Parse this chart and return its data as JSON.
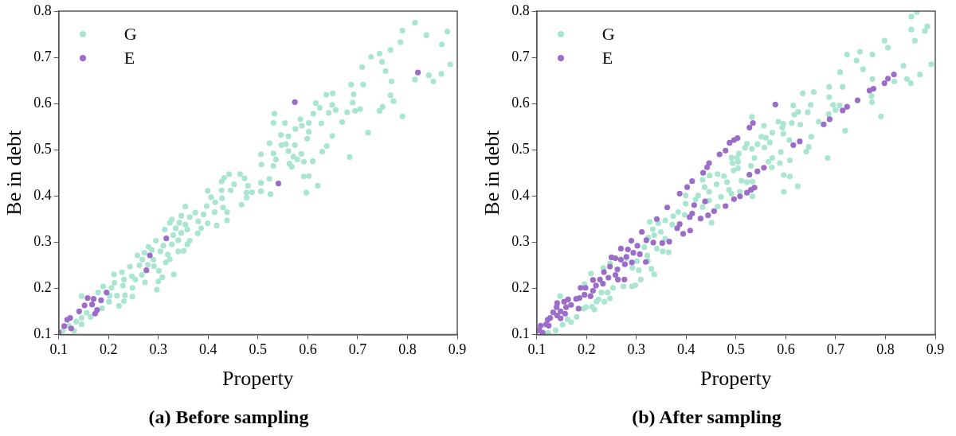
{
  "chart_data": [
    {
      "type": "scatter",
      "title": "(a) Before sampling",
      "xlabel": "Property",
      "ylabel": "Be in debt",
      "xlim": [
        0.1,
        0.9
      ],
      "xticks": [
        0.1,
        0.2,
        0.3,
        0.4,
        0.5,
        0.6,
        0.7,
        0.8,
        0.9
      ],
      "ylim": [
        0.1,
        0.8
      ],
      "yticks": [
        0.1,
        0.2,
        0.3,
        0.4,
        0.5,
        0.6,
        0.7,
        0.8
      ],
      "grid": false,
      "legend": "top left",
      "marker": "circle",
      "series": [
        {
          "name": "G",
          "color": "#a9e5d1",
          "x": [
            0.815,
            0.79,
            0.838,
            0.88,
            0.786,
            0.869,
            0.766,
            0.744,
            0.727,
            0.749,
            0.709,
            0.886,
            0.756,
            0.843,
            0.868,
            0.815,
            0.852,
            0.768,
            0.687,
            0.711,
            0.637,
            0.65,
            0.692,
            0.766,
            0.772,
            0.616,
            0.69,
            0.624,
            0.649,
            0.656,
            0.705,
            0.695,
            0.679,
            0.642,
            0.75,
            0.744,
            0.611,
            0.79,
            0.669,
            0.533,
            0.531,
            0.554,
            0.585,
            0.588,
            0.602,
            0.627,
            0.575,
            0.602,
            0.721,
            0.546,
            0.561,
            0.649,
            0.599,
            0.523,
            0.547,
            0.556,
            0.574,
            0.638,
            0.506,
            0.531,
            0.561,
            0.587,
            0.629,
            0.684,
            0.536,
            0.571,
            0.579,
            0.592,
            0.61,
            0.507,
            0.531,
            0.563,
            0.568,
            0.592,
            0.602,
            0.62,
            0.597,
            0.506,
            0.523,
            0.506,
            0.525,
            0.488,
            0.442,
            0.432,
            0.464,
            0.473,
            0.427,
            0.452,
            0.48,
            0.445,
            0.399,
            0.477,
            0.427,
            0.406,
            0.428,
            0.477,
            0.467,
            0.397,
            0.414,
            0.354,
            0.374,
            0.391,
            0.413,
            0.43,
            0.438,
            0.346,
            0.363,
            0.38,
            0.327,
            0.323,
            0.342,
            0.354,
            0.399,
            0.417,
            0.438,
            0.313,
            0.335,
            0.358,
            0.386,
            0.33,
            0.346,
            0.379,
            0.295,
            0.31,
            0.327,
            0.34,
            0.363,
            0.358,
            0.28,
            0.272,
            0.287,
            0.304,
            0.319,
            0.34,
            0.351,
            0.258,
            0.268,
            0.29,
            0.315,
            0.323,
            0.243,
            0.262,
            0.279,
            0.291,
            0.227,
            0.247,
            0.267,
            0.301,
            0.331,
            0.211,
            0.308,
            0.231,
            0.254,
            0.273,
            0.3,
            0.212,
            0.189,
            0.206,
            0.229,
            0.248,
            0.297,
            0.179,
            0.202,
            0.217,
            0.233,
            0.248,
            0.146,
            0.201,
            0.231,
            0.187,
            0.221,
            0.156,
            0.164,
            0.146,
            0.135,
            0.131,
            0.146,
            0.108,
            0.12
          ],
          "values": [
            0.775,
            0.758,
            0.748,
            0.756,
            0.733,
            0.728,
            0.716,
            0.708,
            0.701,
            0.69,
            0.679,
            0.685,
            0.67,
            0.661,
            0.664,
            0.652,
            0.648,
            0.648,
            0.641,
            0.641,
            0.619,
            0.622,
            0.62,
            0.618,
            0.605,
            0.601,
            0.602,
            0.591,
            0.597,
            0.586,
            0.588,
            0.584,
            0.581,
            0.58,
            0.593,
            0.584,
            0.578,
            0.572,
            0.56,
            0.578,
            0.558,
            0.558,
            0.566,
            0.552,
            0.558,
            0.557,
            0.545,
            0.539,
            0.537,
            0.532,
            0.529,
            0.53,
            0.524,
            0.514,
            0.51,
            0.512,
            0.51,
            0.508,
            0.49,
            0.492,
            0.497,
            0.491,
            0.496,
            0.484,
            0.479,
            0.485,
            0.479,
            0.474,
            0.475,
            0.468,
            0.465,
            0.47,
            0.463,
            0.442,
            0.443,
            0.422,
            0.407,
            0.428,
            0.437,
            0.41,
            0.404,
            0.408,
            0.447,
            0.439,
            0.447,
            0.438,
            0.431,
            0.425,
            0.422,
            0.412,
            0.411,
            0.407,
            0.412,
            0.397,
            0.395,
            0.396,
            0.381,
            0.378,
            0.386,
            0.377,
            0.364,
            0.36,
            0.365,
            0.375,
            0.365,
            0.357,
            0.354,
            0.345,
            0.349,
            0.342,
            0.342,
            0.338,
            0.341,
            0.336,
            0.347,
            0.327,
            0.33,
            0.327,
            0.33,
            0.315,
            0.32,
            0.319,
            0.303,
            0.292,
            0.295,
            0.304,
            0.303,
            0.295,
            0.29,
            0.277,
            0.283,
            0.28,
            0.273,
            0.28,
            0.281,
            0.271,
            0.262,
            0.262,
            0.256,
            0.263,
            0.247,
            0.25,
            0.251,
            0.248,
            0.235,
            0.226,
            0.229,
            0.238,
            0.23,
            0.23,
            0.224,
            0.219,
            0.219,
            0.213,
            0.215,
            0.212,
            0.204,
            0.201,
            0.206,
            0.201,
            0.197,
            0.191,
            0.184,
            0.184,
            0.185,
            0.182,
            0.183,
            0.171,
            0.172,
            0.157,
            0.162,
            0.147,
            0.138,
            0.136,
            0.128,
            0.108,
            0.122,
            0.108,
            0.119
          ]
        },
        {
          "name": "E",
          "color": "#9b6cc8",
          "x": [
            0.574,
            0.821,
            0.541,
            0.316,
            0.283,
            0.276,
            0.196,
            0.185,
            0.17,
            0.158,
            0.152,
            0.167,
            0.177,
            0.173,
            0.141,
            0.123,
            0.117,
            0.111,
            0.125,
            0.1
          ],
          "values": [
            0.603,
            0.667,
            0.427,
            0.308,
            0.271,
            0.239,
            0.191,
            0.174,
            0.177,
            0.179,
            0.163,
            0.165,
            0.153,
            0.145,
            0.15,
            0.136,
            0.132,
            0.118,
            0.113,
            0.105
          ]
        }
      ]
    },
    {
      "type": "scatter",
      "title": "(b) After sampling",
      "xlabel": "Property",
      "ylabel": "Be in debt",
      "xlim": [
        0.1,
        0.9
      ],
      "xticks": [
        0.1,
        0.2,
        0.3,
        0.4,
        0.5,
        0.6,
        0.7,
        0.8,
        0.9
      ],
      "ylim": [
        0.1,
        0.8
      ],
      "yticks": [
        0.1,
        0.2,
        0.3,
        0.4,
        0.5,
        0.6,
        0.7,
        0.8
      ],
      "grid": false,
      "legend": "top left",
      "marker": "circle",
      "series": [
        {
          "name": "G",
          "color": "#a9e5d1",
          "x": [
            0.863,
            0.852,
            0.852,
            0.884,
            0.879,
            0.859,
            0.798,
            0.805,
            0.723,
            0.749,
            0.742,
            0.774,
            0.755,
            0.709,
            0.892,
            0.836,
            0.869,
            0.843,
            0.851,
            0.818,
            0.774,
            0.687,
            0.714,
            0.634,
            0.656,
            0.687,
            0.772,
            0.773,
            0.615,
            0.65,
            0.695,
            0.708,
            0.7,
            0.625,
            0.644,
            0.686,
            0.617,
            0.666,
            0.791,
            0.532,
            0.585,
            0.595,
            0.612,
            0.556,
            0.593,
            0.629,
            0.573,
            0.595,
            0.719,
            0.651,
            0.551,
            0.56,
            0.568,
            0.607,
            0.522,
            0.543,
            0.557,
            0.646,
            0.532,
            0.518,
            0.641,
            0.506,
            0.59,
            0.573,
            0.684,
            0.491,
            0.502,
            0.537,
            0.565,
            0.588,
            0.608,
            0.504,
            0.493,
            0.53,
            0.572,
            0.504,
            0.495,
            0.596,
            0.608,
            0.624,
            0.596,
            0.463,
            0.476,
            0.447,
            0.511,
            0.522,
            0.533,
            0.433,
            0.461,
            0.482,
            0.446,
            0.437,
            0.508,
            0.486,
            0.491,
            0.533,
            0.47,
            0.424,
            0.399,
            0.399,
            0.419,
            0.446,
            0.433,
            0.463,
            0.384,
            0.397,
            0.374,
            0.451,
            0.327,
            0.344,
            0.358,
            0.372,
            0.333,
            0.349,
            0.336,
            0.324,
            0.358,
            0.316,
            0.341,
            0.353,
            0.365,
            0.322,
            0.28,
            0.301,
            0.323,
            0.247,
            0.33,
            0.336,
            0.305,
            0.234,
            0.292,
            0.309,
            0.298,
            0.291,
            0.274,
            0.253,
            0.242,
            0.23,
            0.209,
            0.196,
            0.224,
            0.247,
            0.236,
            0.22,
            0.211,
            0.199,
            0.216,
            0.194,
            0.18,
            0.162,
            0.147,
            0.169,
            0.152,
            0.123,
            0.138
          ],
          "values": [
            0.798,
            0.788,
            0.76,
            0.767,
            0.757,
            0.736,
            0.736,
            0.721,
            0.706,
            0.712,
            0.693,
            0.706,
            0.674,
            0.668,
            0.685,
            0.682,
            0.663,
            0.653,
            0.644,
            0.648,
            0.653,
            0.636,
            0.636,
            0.622,
            0.625,
            0.614,
            0.616,
            0.603,
            0.596,
            0.597,
            0.597,
            0.596,
            0.586,
            0.582,
            0.581,
            0.577,
            0.576,
            0.561,
            0.572,
            0.571,
            0.561,
            0.556,
            0.558,
            0.552,
            0.548,
            0.554,
            0.537,
            0.535,
            0.541,
            0.528,
            0.528,
            0.526,
            0.516,
            0.521,
            0.513,
            0.512,
            0.505,
            0.506,
            0.502,
            0.504,
            0.496,
            0.492,
            0.495,
            0.482,
            0.482,
            0.483,
            0.483,
            0.482,
            0.474,
            0.471,
            0.477,
            0.474,
            0.471,
            0.465,
            0.462,
            0.46,
            0.455,
            0.445,
            0.442,
            0.421,
            0.409,
            0.447,
            0.443,
            0.444,
            0.433,
            0.43,
            0.431,
            0.435,
            0.425,
            0.43,
            0.409,
            0.419,
            0.409,
            0.413,
            0.405,
            0.399,
            0.398,
            0.401,
            0.401,
            0.383,
            0.392,
            0.39,
            0.376,
            0.377,
            0.365,
            0.359,
            0.356,
            0.342,
            0.344,
            0.341,
            0.347,
            0.338,
            0.328,
            0.322,
            0.315,
            0.31,
            0.307,
            0.289,
            0.286,
            0.28,
            0.278,
            0.271,
            0.265,
            0.259,
            0.259,
            0.254,
            0.242,
            0.23,
            0.239,
            0.244,
            0.244,
            0.219,
            0.207,
            0.204,
            0.204,
            0.201,
            0.191,
            0.191,
            0.232,
            0.209,
            0.176,
            0.178,
            0.171,
            0.171,
            0.16,
            0.159,
            0.154,
            0.156,
            0.138,
            0.133,
            0.183,
            0.127,
            0.121,
            0.104,
            0.109
          ]
        },
        {
          "name": "E",
          "color": "#9b6cc8",
          "x": [
            0.579,
            0.817,
            0.805,
            0.798,
            0.776,
            0.768,
            0.744,
            0.723,
            0.714,
            0.688,
            0.676,
            0.628,
            0.615,
            0.556,
            0.543,
            0.527,
            0.537,
            0.53,
            0.522,
            0.508,
            0.496,
            0.479,
            0.534,
            0.527,
            0.503,
            0.496,
            0.487,
            0.479,
            0.467,
            0.446,
            0.442,
            0.434,
            0.412,
            0.402,
            0.387,
            0.362,
            0.341,
            0.311,
            0.29,
            0.269,
            0.25,
            0.416,
            0.438,
            0.456,
            0.444,
            0.429,
            0.407,
            0.412,
            0.387,
            0.382,
            0.408,
            0.394,
            0.366,
            0.352,
            0.334,
            0.32,
            0.302,
            0.283,
            0.294,
            0.307,
            0.28,
            0.269,
            0.258,
            0.291,
            0.277,
            0.319,
            0.262,
            0.247,
            0.235,
            0.258,
            0.244,
            0.227,
            0.213,
            0.233,
            0.219,
            0.263,
            0.276,
            0.188,
            0.198,
            0.213,
            0.196,
            0.208,
            0.186,
            0.163,
            0.179,
            0.155,
            0.141,
            0.169,
            0.184,
            0.159,
            0.14,
            0.148,
            0.133,
            0.157,
            0.141,
            0.127,
            0.122,
            0.148,
            0.119,
            0.108,
            0.124,
            0.105,
            0.112
          ],
          "values": [
            0.598,
            0.663,
            0.654,
            0.644,
            0.632,
            0.628,
            0.607,
            0.593,
            0.585,
            0.566,
            0.555,
            0.518,
            0.51,
            0.461,
            0.453,
            0.446,
            0.418,
            0.413,
            0.407,
            0.399,
            0.393,
            0.378,
            0.558,
            0.548,
            0.525,
            0.521,
            0.515,
            0.498,
            0.49,
            0.471,
            0.462,
            0.45,
            0.432,
            0.419,
            0.405,
            0.375,
            0.35,
            0.322,
            0.303,
            0.286,
            0.267,
            0.38,
            0.388,
            0.367,
            0.358,
            0.351,
            0.354,
            0.362,
            0.339,
            0.33,
            0.325,
            0.318,
            0.301,
            0.298,
            0.299,
            0.304,
            0.292,
            0.284,
            0.277,
            0.274,
            0.268,
            0.262,
            0.265,
            0.256,
            0.252,
            0.257,
            0.241,
            0.247,
            0.235,
            0.229,
            0.223,
            0.219,
            0.218,
            0.21,
            0.206,
            0.219,
            0.219,
            0.201,
            0.201,
            0.195,
            0.186,
            0.183,
            0.179,
            0.176,
            0.177,
            0.171,
            0.168,
            0.164,
            0.156,
            0.159,
            0.159,
            0.15,
            0.148,
            0.145,
            0.141,
            0.136,
            0.132,
            0.135,
            0.122,
            0.119,
            0.119,
            0.109,
            0.104
          ]
        }
      ]
    }
  ]
}
